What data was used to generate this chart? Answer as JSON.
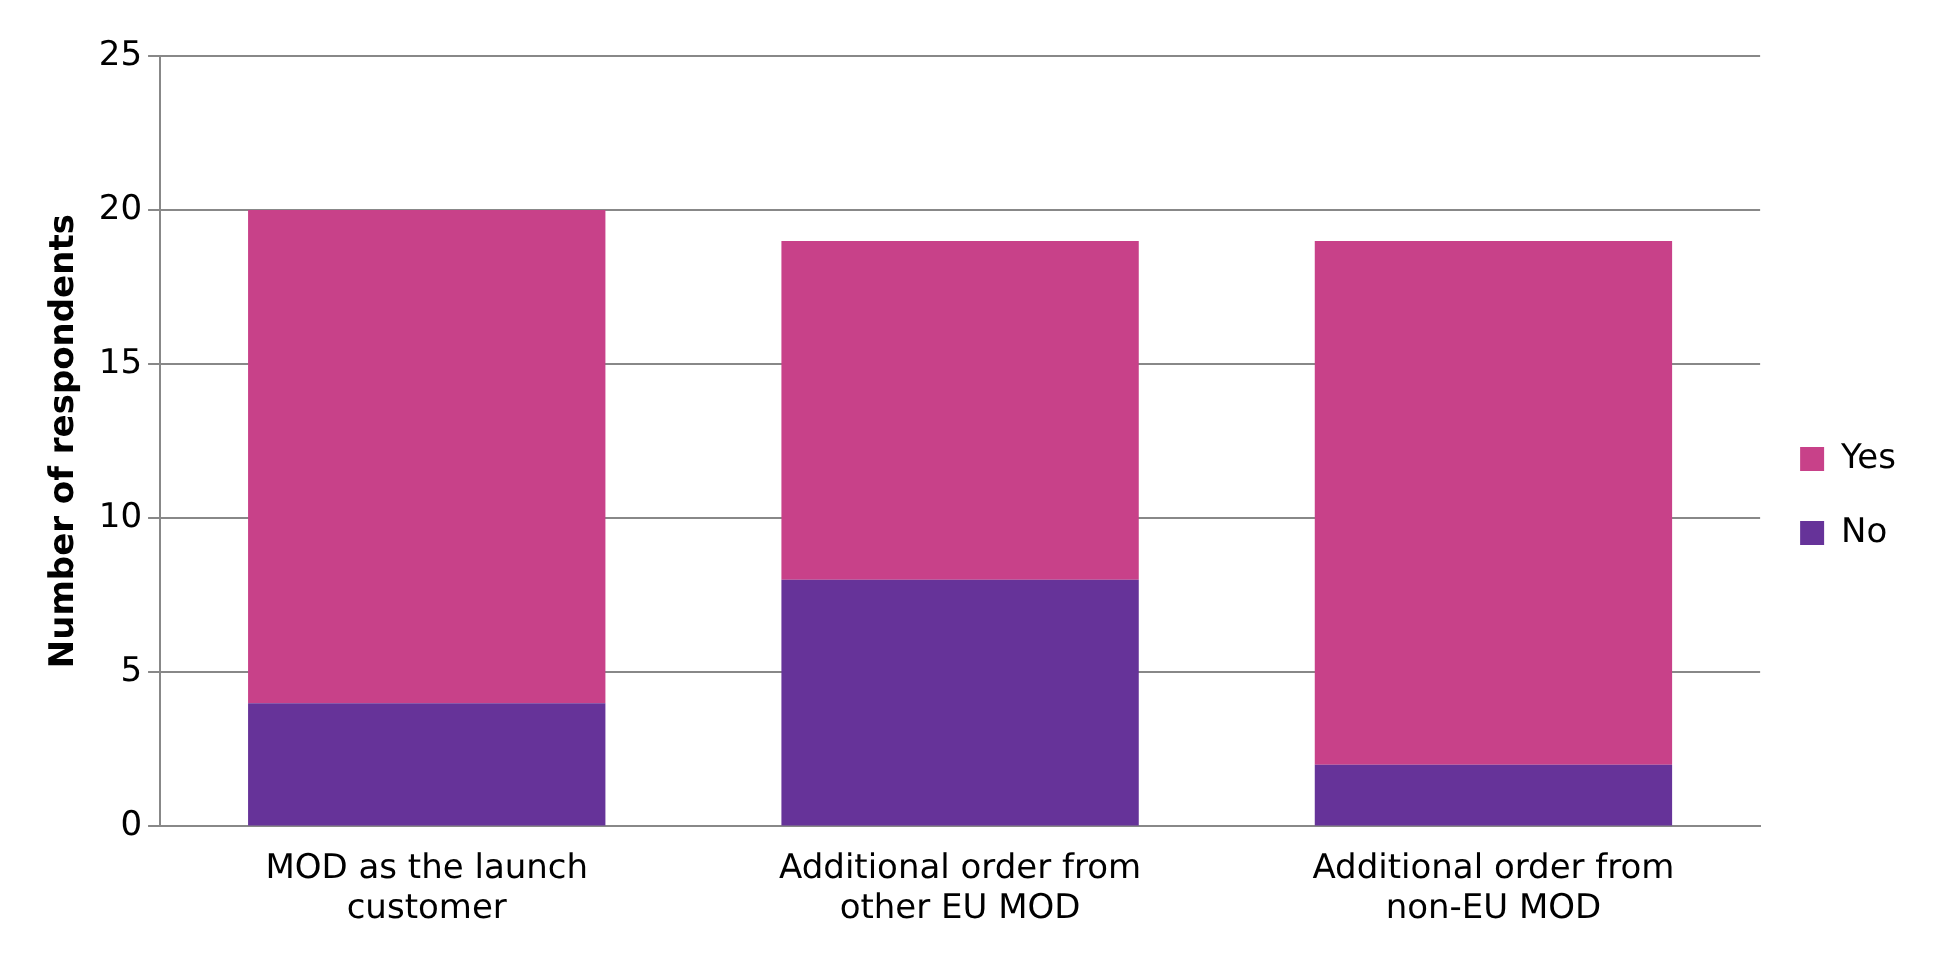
{
  "chart_data": {
    "type": "bar",
    "stacked": true,
    "ylabel": "Number of respondents",
    "categories": [
      [
        "MOD as the launch",
        "customer"
      ],
      [
        "Additional order from",
        "other EU MOD"
      ],
      [
        "Additional order from",
        "non-EU MOD"
      ]
    ],
    "series": [
      {
        "name": "No",
        "color": "#663399",
        "values": [
          4,
          8,
          2
        ]
      },
      {
        "name": "Yes",
        "color": "#c84189",
        "values": [
          16,
          11,
          17
        ]
      }
    ],
    "ylim": [
      0,
      25
    ],
    "yticks": [
      0,
      5,
      10,
      15,
      20,
      25
    ],
    "grid": "y",
    "legend": "right"
  }
}
